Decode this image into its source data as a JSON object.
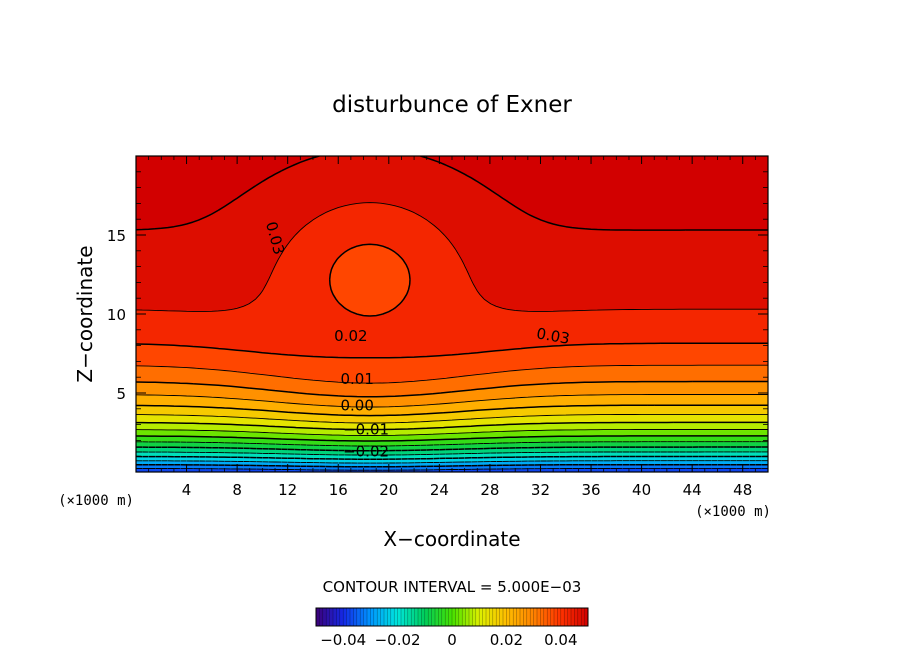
{
  "chart_data": {
    "type": "contour",
    "title": "disturbunce of Exner",
    "xlabel": "X−coordinate",
    "ylabel": "Z−coordinate",
    "x_unit": "(×1000 m)",
    "y_unit": "(×1000 m)",
    "xlim": [
      0,
      50
    ],
    "ylim": [
      0,
      20
    ],
    "x_ticks": [
      4,
      8,
      12,
      16,
      20,
      24,
      28,
      32,
      36,
      40,
      44,
      48
    ],
    "y_ticks": [
      5,
      10,
      15
    ],
    "contour_interval": "CONTOUR INTERVAL = 5.000E−03",
    "contour_labels": [
      {
        "text": "0.03",
        "x": 11,
        "z": 14.8,
        "angle": 75
      },
      {
        "text": "0.03",
        "x": 33,
        "z": 8.6,
        "angle": 10
      },
      {
        "text": "0.02",
        "x": 17,
        "z": 8.6,
        "angle": 0
      },
      {
        "text": "0.01",
        "x": 17.5,
        "z": 5.9,
        "angle": 0
      },
      {
        "text": "0.00",
        "x": 17.5,
        "z": 4.2,
        "angle": 0
      },
      {
        "text": "−0.01",
        "x": 18.2,
        "z": 2.7,
        "angle": 0
      },
      {
        "text": "−0.02",
        "x": 18.2,
        "z": 1.3,
        "angle": 0
      }
    ],
    "colorbar": {
      "min": -0.05,
      "max": 0.05,
      "tick_values": [
        -0.04,
        -0.02,
        0,
        0.02,
        0.04
      ],
      "tick_labels": [
        "−0.04",
        "−0.02",
        "0",
        "0.02",
        "0.04"
      ]
    }
  }
}
